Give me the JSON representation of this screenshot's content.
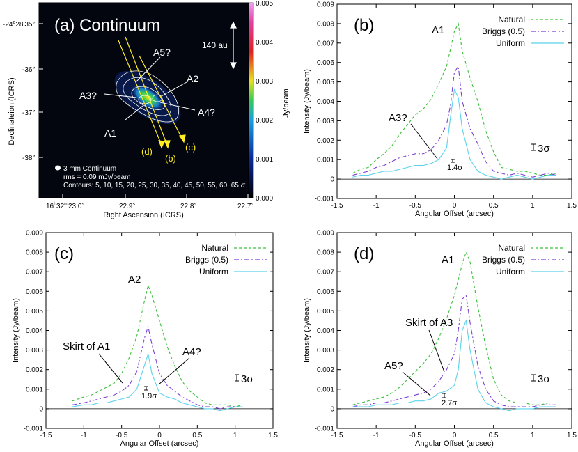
{
  "chart_data": [
    {
      "id": "a",
      "type": "heatmap",
      "title": "(a) Continuum",
      "xlabel": "Right Ascension (ICRS)",
      "ylabel": "Declinateion (ICRS)",
      "xticks": [
        {
          "label": "16h32m23.0s",
          "ra_s": 23.0
        },
        {
          "label": "22.9s",
          "ra_s": 22.9
        },
        {
          "label": "22.8s",
          "ra_s": 22.8
        },
        {
          "label": "22.7s",
          "ra_s": 22.7
        }
      ],
      "xtick_parts": {
        "hour": "16",
        "h": "h",
        "minute": "32",
        "m": "m",
        "sec": "23.0",
        "s": "s",
        "t2": "22.9",
        "t3": "22.8",
        "t4": "22.7"
      },
      "yticks": [
        {
          "label": "-24°28′35″",
          "dec_arcsec": 35
        },
        {
          "label": "-36″",
          "dec_arcsec": 36
        },
        {
          "label": "-37″",
          "dec_arcsec": 37
        },
        {
          "label": "-38″",
          "dec_arcsec": 38
        }
      ],
      "ytick_top_parts": {
        "deg": "-24",
        "o": "o",
        "min": "28",
        "mm": "′",
        "sec": "35",
        "ss": "″"
      },
      "colorbar": {
        "label": "Jy/beam",
        "range": [
          0,
          0.005
        ],
        "ticks": [
          "0.005",
          "0.004",
          "0.003",
          "0.002",
          "0.001",
          "0.000"
        ]
      },
      "annotations": {
        "scale": "140 au",
        "sources": [
          "A5?",
          "A2",
          "A3?",
          "A4?",
          "A1"
        ],
        "cuts": [
          "(d)",
          "(b)",
          "(c)"
        ],
        "legend_beam": "3 mm Continuum",
        "rms": "rms = 0.09 mJy/beam",
        "contours_text": "Contours: 5, 10, 15, 20, 25, 30, 35, 40, 45, 50, 55, 60, 65",
        "sigma": "σ"
      }
    },
    {
      "id": "b",
      "type": "line",
      "panel_label": "(b)",
      "xlabel": "Angular Offset (arcsec)",
      "ylabel": "Intensity (Jy/beam)",
      "xlim": [
        -1.5,
        1.5
      ],
      "ylim": [
        -0.001,
        0.009
      ],
      "xticks": [
        "-1.5",
        "-1",
        "-0.5",
        "0",
        "0.5",
        "1",
        "1.5"
      ],
      "yticks": [
        "-0.001",
        "0",
        "0.001",
        "0.002",
        "0.003",
        "0.004",
        "0.005",
        "0.006",
        "0.007",
        "0.008",
        "0.009"
      ],
      "legend": [
        "Natural",
        "Briggs (0.5)",
        "Uniform"
      ],
      "annotations": {
        "peak": "A1",
        "feature": "A3?",
        "err_label": "1.4σ",
        "sigma_bar": "3σ"
      },
      "series": [
        {
          "name": "Natural",
          "x": [
            -1.3,
            -1.2,
            -1.1,
            -1.0,
            -0.9,
            -0.8,
            -0.7,
            -0.6,
            -0.5,
            -0.4,
            -0.3,
            -0.2,
            -0.1,
            0.0,
            0.05,
            0.1,
            0.2,
            0.3,
            0.4,
            0.5,
            0.6,
            0.7,
            0.8,
            0.9,
            1.0,
            1.1,
            1.2,
            1.3
          ],
          "y": [
            0.0003,
            0.0005,
            0.0006,
            0.001,
            0.0013,
            0.0017,
            0.0023,
            0.0028,
            0.0033,
            0.0036,
            0.0041,
            0.0049,
            0.0058,
            0.0076,
            0.008,
            0.0066,
            0.0052,
            0.004,
            0.0025,
            0.0014,
            0.0006,
            0.0005,
            0.0004,
            0.0004,
            0.0003,
            0.0002,
            0.0002,
            0.0003
          ]
        },
        {
          "name": "Briggs (0.5)",
          "x": [
            -1.3,
            -1.2,
            -1.1,
            -1.0,
            -0.9,
            -0.8,
            -0.7,
            -0.6,
            -0.5,
            -0.4,
            -0.3,
            -0.2,
            -0.1,
            -0.05,
            0.0,
            0.05,
            0.1,
            0.2,
            0.3,
            0.4,
            0.5,
            0.6,
            0.7,
            0.8,
            0.9,
            1.0,
            1.1,
            1.2,
            1.3
          ],
          "y": [
            0.0002,
            0.0003,
            0.0004,
            0.0006,
            0.0007,
            0.0009,
            0.0011,
            0.0012,
            0.0013,
            0.0013,
            0.0015,
            0.002,
            0.0028,
            0.0038,
            0.0055,
            0.0058,
            0.004,
            0.0026,
            0.0018,
            0.0009,
            0.0004,
            0.0003,
            0.0002,
            0.0003,
            0.0002,
            0.0001,
            0.0002,
            0.0003,
            0.0002
          ]
        },
        {
          "name": "Uniform",
          "x": [
            -1.3,
            -1.2,
            -1.1,
            -1.0,
            -0.9,
            -0.8,
            -0.7,
            -0.6,
            -0.5,
            -0.4,
            -0.3,
            -0.2,
            -0.1,
            -0.05,
            0.0,
            0.05,
            0.1,
            0.2,
            0.3,
            0.4,
            0.5,
            0.6,
            0.7,
            0.8,
            0.9,
            1.0,
            1.1,
            1.2,
            1.3
          ],
          "y": [
            0.0001,
            0.0002,
            0.0002,
            0.0003,
            0.0004,
            0.0004,
            0.0005,
            0.0006,
            0.0007,
            0.0007,
            0.0008,
            0.001,
            0.0016,
            0.0032,
            0.0046,
            0.0042,
            0.0026,
            0.001,
            0.0004,
            0.0002,
            0.0001,
            0.0,
            0.0001,
            0.0002,
            0.0001,
            0.0,
            0.0001,
            0.0002,
            0.0002
          ]
        }
      ]
    },
    {
      "id": "c",
      "type": "line",
      "panel_label": "(c)",
      "xlabel": "Angular Offset (arcsec)",
      "ylabel": "Intensity (Jy/beam)",
      "xlim": [
        -1.5,
        1.5
      ],
      "ylim": [
        -0.001,
        0.009
      ],
      "xticks": [
        "-1.5",
        "-1",
        "-0.5",
        "0",
        "0.5",
        "1",
        "1.5"
      ],
      "yticks": [
        "-0.001",
        "0",
        "0.001",
        "0.002",
        "0.003",
        "0.004",
        "0.005",
        "0.006",
        "0.007",
        "0.008",
        "0.009"
      ],
      "legend": [
        "Natural",
        "Briggs (0.5)",
        "Uniform"
      ],
      "annotations": {
        "peak": "A2",
        "feature_left": "Skirt of A1",
        "feature_right": "A4?",
        "err_label": "1.9σ",
        "sigma_bar": "3σ"
      },
      "series": [
        {
          "name": "Natural",
          "x": [
            -1.15,
            -1.0,
            -0.9,
            -0.8,
            -0.7,
            -0.6,
            -0.5,
            -0.4,
            -0.3,
            -0.2,
            -0.15,
            -0.1,
            0.0,
            0.1,
            0.2,
            0.3,
            0.4,
            0.5,
            0.6,
            0.7,
            0.8,
            0.9,
            1.0,
            1.1
          ],
          "y": [
            0.0004,
            0.0006,
            0.0007,
            0.0009,
            0.0011,
            0.0013,
            0.0018,
            0.0026,
            0.0037,
            0.0055,
            0.0063,
            0.0058,
            0.0045,
            0.0032,
            0.0022,
            0.0014,
            0.0009,
            0.0006,
            0.0003,
            0.0002,
            0.0002,
            0.0002,
            0.0001,
            0.0002
          ]
        },
        {
          "name": "Briggs (0.5)",
          "x": [
            -1.15,
            -1.0,
            -0.9,
            -0.8,
            -0.7,
            -0.6,
            -0.5,
            -0.4,
            -0.3,
            -0.2,
            -0.15,
            -0.1,
            0.0,
            0.1,
            0.2,
            0.3,
            0.4,
            0.5,
            0.6,
            0.7,
            0.8,
            0.9,
            1.0,
            1.1
          ],
          "y": [
            0.0002,
            0.0003,
            0.0004,
            0.0005,
            0.0006,
            0.0007,
            0.0009,
            0.0012,
            0.0019,
            0.0036,
            0.0042,
            0.0033,
            0.0018,
            0.0012,
            0.0009,
            0.0006,
            0.0004,
            0.0002,
            0.0001,
            0.0001,
            0.0,
            0.0001,
            0.0001,
            0.0001
          ]
        },
        {
          "name": "Uniform",
          "x": [
            -1.15,
            -1.0,
            -0.9,
            -0.8,
            -0.7,
            -0.6,
            -0.5,
            -0.4,
            -0.3,
            -0.2,
            -0.15,
            -0.1,
            0.0,
            0.1,
            0.2,
            0.3,
            0.4,
            0.5,
            0.6,
            0.7,
            0.8,
            0.9,
            1.0,
            1.1
          ],
          "y": [
            0.0001,
            0.0002,
            0.0002,
            0.0003,
            0.0003,
            0.0004,
            0.0005,
            0.0006,
            0.001,
            0.0022,
            0.0028,
            0.0018,
            0.0008,
            0.0006,
            0.0005,
            0.0003,
            0.0002,
            0.0001,
            0.0,
            0.0,
            -0.0001,
            0.0,
            0.0001,
            0.0001
          ]
        }
      ]
    },
    {
      "id": "d",
      "type": "line",
      "panel_label": "(d)",
      "xlabel": "Angular Offset (arcsec)",
      "ylabel": "Intensity (Jy/beam)",
      "xlim": [
        -1.5,
        1.5
      ],
      "ylim": [
        -0.001,
        0.009
      ],
      "xticks": [
        "-1.5",
        "-1",
        "-0.5",
        "0",
        "0.5",
        "1",
        "1.5"
      ],
      "yticks": [
        "-0.001",
        "0",
        "0.001",
        "0.002",
        "0.003",
        "0.004",
        "0.005",
        "0.006",
        "0.007",
        "0.008",
        "0.009"
      ],
      "legend": [
        "Natural",
        "Briggs (0.5)",
        "Uniform"
      ],
      "annotations": {
        "peak": "A1",
        "feature_upper": "Skirt of A3",
        "feature_lower": "A5?",
        "err_label": "2.7σ",
        "sigma_bar": "3σ"
      },
      "series": [
        {
          "name": "Natural",
          "x": [
            -1.3,
            -1.2,
            -1.1,
            -1.0,
            -0.9,
            -0.8,
            -0.7,
            -0.6,
            -0.5,
            -0.4,
            -0.3,
            -0.2,
            -0.1,
            0.0,
            0.1,
            0.15,
            0.2,
            0.3,
            0.4,
            0.5,
            0.6,
            0.7,
            0.8,
            0.9,
            1.0,
            1.1,
            1.2,
            1.3
          ],
          "y": [
            0.0002,
            0.0003,
            0.0004,
            0.0005,
            0.0006,
            0.0008,
            0.0011,
            0.0015,
            0.0019,
            0.0023,
            0.0028,
            0.0036,
            0.0046,
            0.0058,
            0.0074,
            0.008,
            0.0075,
            0.0052,
            0.0032,
            0.0015,
            0.0007,
            0.0004,
            0.0003,
            0.0003,
            0.0002,
            0.0002,
            0.0003,
            0.0003
          ]
        },
        {
          "name": "Briggs (0.5)",
          "x": [
            -1.3,
            -1.2,
            -1.1,
            -1.0,
            -0.9,
            -0.8,
            -0.7,
            -0.6,
            -0.5,
            -0.4,
            -0.3,
            -0.2,
            -0.1,
            0.0,
            0.05,
            0.1,
            0.15,
            0.2,
            0.3,
            0.4,
            0.5,
            0.6,
            0.7,
            0.8,
            0.9,
            1.0,
            1.1,
            1.2,
            1.3
          ],
          "y": [
            0.0001,
            0.0002,
            0.0002,
            0.0003,
            0.0003,
            0.0004,
            0.0005,
            0.0006,
            0.0007,
            0.0008,
            0.001,
            0.0014,
            0.002,
            0.0028,
            0.004,
            0.0056,
            0.0058,
            0.0044,
            0.0022,
            0.001,
            0.0004,
            0.0002,
            0.0001,
            0.0001,
            0.0001,
            0.0001,
            0.0002,
            0.0002,
            0.0002
          ]
        },
        {
          "name": "Uniform",
          "x": [
            -1.3,
            -1.2,
            -1.1,
            -1.0,
            -0.9,
            -0.8,
            -0.7,
            -0.6,
            -0.5,
            -0.4,
            -0.3,
            -0.2,
            -0.1,
            0.0,
            0.05,
            0.1,
            0.15,
            0.2,
            0.3,
            0.4,
            0.5,
            0.6,
            0.7,
            0.8,
            0.9,
            1.0,
            1.1,
            1.2,
            1.3
          ],
          "y": [
            0.0001,
            0.0001,
            0.0001,
            0.0002,
            0.0002,
            0.0002,
            0.0003,
            0.0003,
            0.0004,
            0.0004,
            0.0005,
            0.0008,
            0.0009,
            0.0012,
            0.002,
            0.004,
            0.0045,
            0.003,
            0.001,
            0.0003,
            0.0001,
            0.0,
            -0.0001,
            0.0,
            0.0,
            0.0,
            0.0001,
            0.0001,
            0.0001
          ]
        }
      ]
    }
  ],
  "colors": {
    "natural": "#3cbf3c",
    "briggs": "#7a3fd6",
    "uniform": "#5ad2ec",
    "axis": "#000000",
    "annot_yellow": "#ffee22"
  }
}
